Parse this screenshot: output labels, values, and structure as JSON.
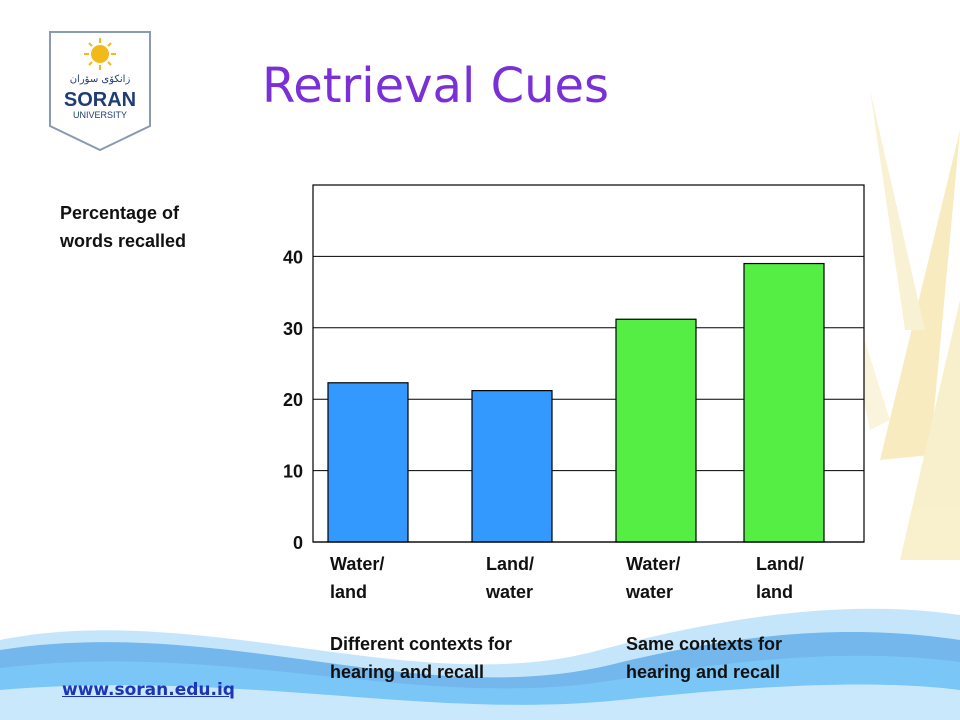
{
  "slide": {
    "title": "Retrieval Cues",
    "url": "www.soran.edu.iq",
    "logo": {
      "arabic_text": "زانكۆی سۆران",
      "name": "SORAN",
      "sub": "UNIVERSITY"
    }
  },
  "chart_data": {
    "type": "bar",
    "ylabel_line1": "Percentage of",
    "ylabel_line2": "words recalled",
    "ylim": [
      0,
      50
    ],
    "yticks": [
      "0",
      "10",
      "20",
      "30",
      "40"
    ],
    "grid": true,
    "categories": [
      {
        "line1": "Water/",
        "line2": "land",
        "value": 22.3,
        "color": "#3399ff"
      },
      {
        "line1": "Land/",
        "line2": "water",
        "value": 21.2,
        "color": "#3399ff"
      },
      {
        "line1": "Water/",
        "line2": "water",
        "value": 31.2,
        "color": "#55ee44"
      },
      {
        "line1": "Land/",
        "line2": "land",
        "value": 39.0,
        "color": "#55ee44"
      }
    ],
    "groups": [
      {
        "line1": "Different contexts for",
        "line2": "hearing and recall"
      },
      {
        "line1": "Same contexts for",
        "line2": "hearing and recall"
      }
    ]
  }
}
